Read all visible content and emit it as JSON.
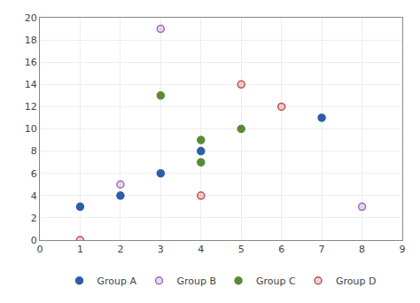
{
  "chart_data": {
    "type": "scatter",
    "series": [
      {
        "name": "Group A",
        "color": "#2E5DA8",
        "marker": "circle",
        "x": [
          1,
          2,
          3,
          4,
          7
        ],
        "values": [
          3,
          4,
          6,
          8,
          11
        ]
      },
      {
        "name": "Group B",
        "color": "#9B6DB5",
        "marker": "circle-open",
        "x": [
          2,
          3,
          8
        ],
        "values": [
          5,
          19,
          3
        ]
      },
      {
        "name": "Group C",
        "color": "#5A8A38",
        "marker": "circle",
        "x": [
          3,
          4,
          4,
          5
        ],
        "values": [
          13,
          9,
          7,
          10
        ]
      },
      {
        "name": "Group D",
        "color": "#C0504D",
        "marker": "circle-open",
        "x": [
          1,
          4,
          5,
          6
        ],
        "values": [
          0,
          4,
          14,
          12
        ]
      }
    ],
    "xlim": [
      0,
      9
    ],
    "xticks": [
      0,
      1,
      2,
      3,
      4,
      5,
      6,
      7,
      8,
      9
    ],
    "ylim": [
      0,
      20
    ],
    "yticks": [
      0,
      2,
      4,
      6,
      8,
      10,
      12,
      14,
      16,
      18,
      20
    ],
    "grid": true,
    "legend": "bottom"
  }
}
